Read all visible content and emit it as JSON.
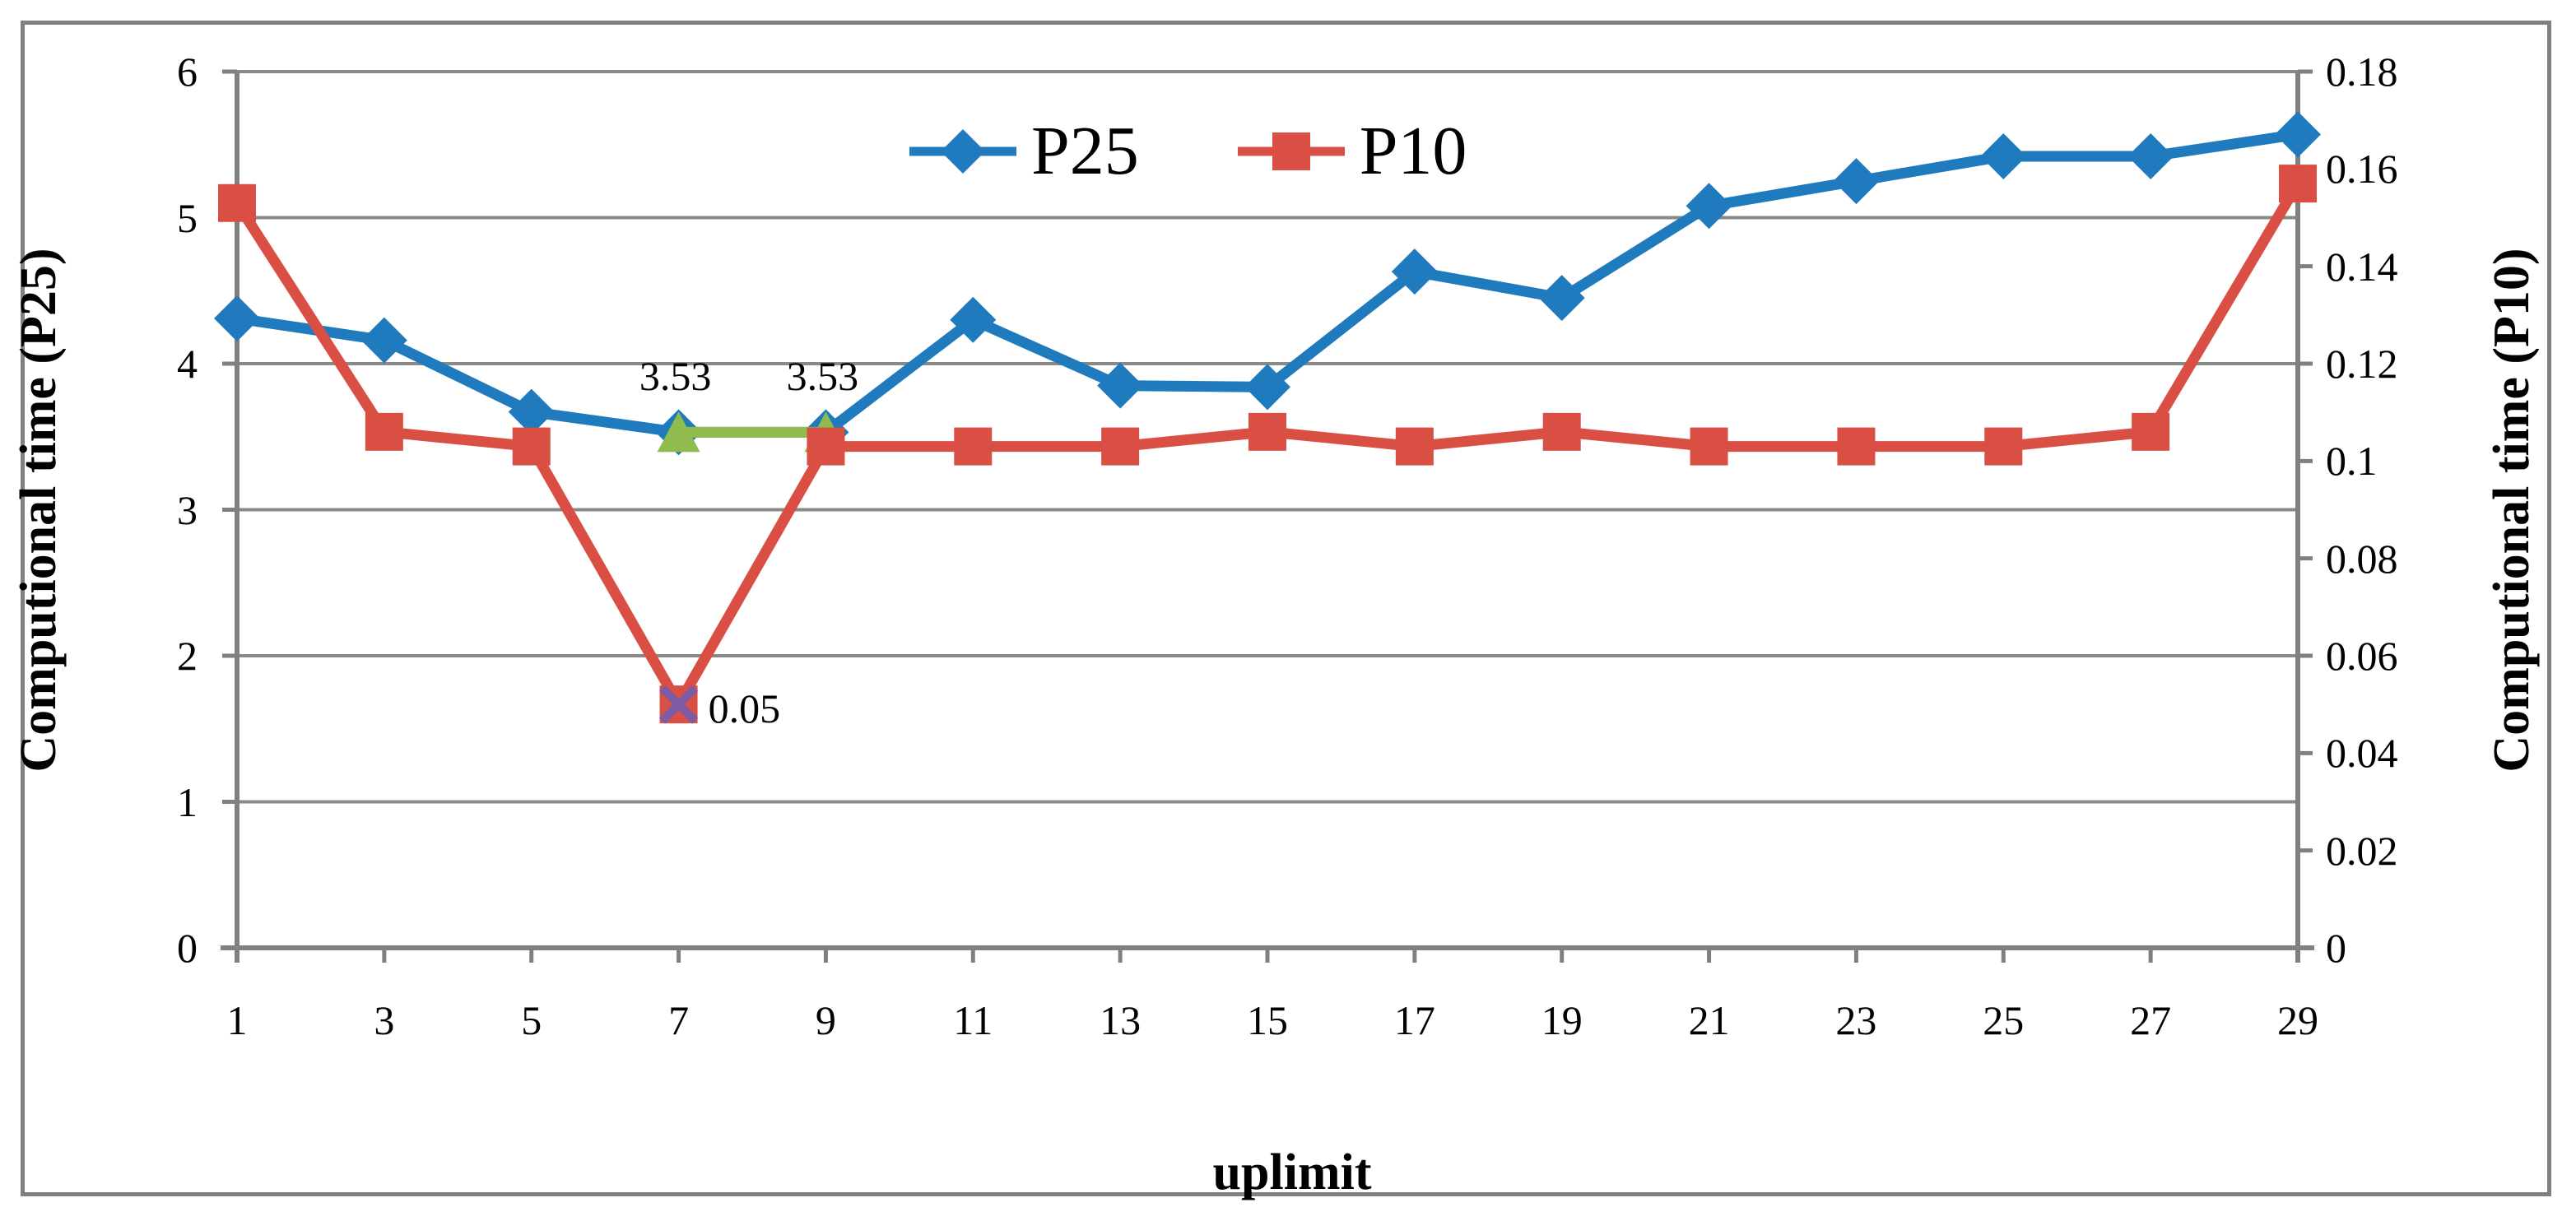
{
  "figure": {
    "border_color": "#808080",
    "background": "#ffffff",
    "gridline_color": "#898989",
    "axis_color": "#808080",
    "text_color": "#000000"
  },
  "legend": {
    "items": [
      {
        "label": "P25",
        "marker": "diamond-icon",
        "color": "#1F7BBD"
      },
      {
        "label": "P10",
        "marker": "square-icon",
        "color": "#D94F44"
      }
    ]
  },
  "axes": {
    "x": {
      "title": "uplimit",
      "ticks": [
        "1",
        "3",
        "5",
        "7",
        "9",
        "11",
        "13",
        "15",
        "17",
        "19",
        "21",
        "23",
        "25",
        "27",
        "29"
      ]
    },
    "y_left": {
      "title": "Computional time (P25)",
      "ticks": [
        "6",
        "5",
        "4",
        "3",
        "2",
        "1",
        "0"
      ]
    },
    "y_right": {
      "title": "Computional time (P10)",
      "ticks": [
        "0.18",
        "0.16",
        "0.14",
        "0.12",
        "0.1",
        "0.08",
        "0.06",
        "0.04",
        "0.02",
        "0"
      ]
    }
  },
  "chart_data": {
    "type": "line",
    "x": [
      1,
      3,
      5,
      7,
      9,
      11,
      13,
      15,
      17,
      19,
      21,
      23,
      25,
      27,
      29
    ],
    "xlabel": "uplimit",
    "ylabel_left": "Computional time (P25)",
    "ylabel_right": "Computional time (P10)",
    "ylim_left": [
      0,
      6
    ],
    "ylim_right": [
      0,
      0.18
    ],
    "grid": true,
    "legend_position": "top-center",
    "series": [
      {
        "name": "P25",
        "axis": "left",
        "color": "#1F7BBD",
        "marker": "diamond",
        "values": [
          4.31,
          4.16,
          3.67,
          3.53,
          3.53,
          4.3,
          3.85,
          3.84,
          4.63,
          4.45,
          5.08,
          5.25,
          5.42,
          5.42,
          5.57
        ]
      },
      {
        "name": "highlight-segment-7-9",
        "axis": "left",
        "color": "#8FBC4D",
        "marker": "triangle",
        "x": [
          7,
          9
        ],
        "values": [
          3.53,
          3.53
        ]
      },
      {
        "name": "P10",
        "axis": "right",
        "color": "#D94F44",
        "marker": "square",
        "values": [
          0.153,
          0.106,
          0.103,
          0.05,
          0.103,
          0.103,
          0.103,
          0.106,
          0.103,
          0.106,
          0.103,
          0.103,
          0.103,
          0.106,
          0.157
        ]
      },
      {
        "name": "min-point-marker",
        "axis": "right",
        "color": "#7C5CA4",
        "marker": "x",
        "x": [
          7
        ],
        "values": [
          0.05
        ]
      }
    ],
    "annotations": [
      {
        "text": "3.53",
        "x": 7,
        "axis": "left",
        "value": 3.53,
        "position": "above"
      },
      {
        "text": "3.53",
        "x": 9,
        "axis": "left",
        "value": 3.53,
        "position": "above"
      },
      {
        "text": "0.05",
        "x": 7,
        "axis": "right",
        "value": 0.05,
        "position": "right"
      }
    ]
  }
}
